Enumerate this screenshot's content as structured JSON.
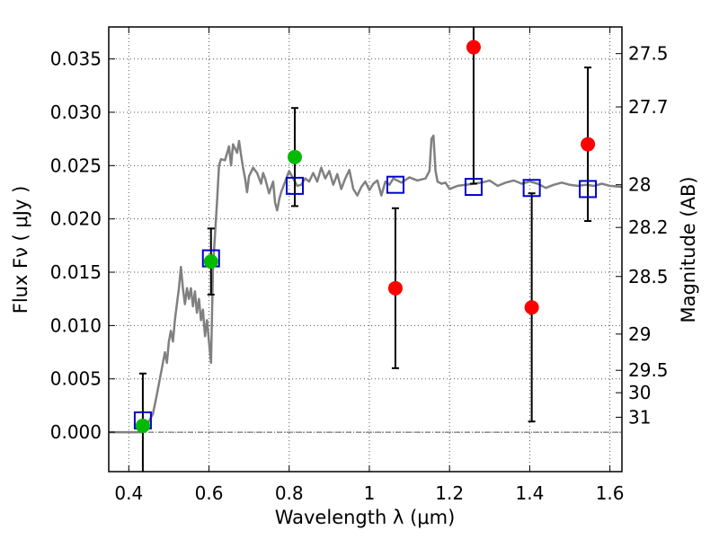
{
  "chart_data": {
    "type": "scatter",
    "title": "",
    "xlabel": "Wavelength  λ (μm)",
    "ylabel": "Flux  Fν  ( μJy )",
    "y2label": "Magnitude (AB)",
    "xlim": [
      0.35,
      1.63
    ],
    "ylim": [
      -0.0037,
      0.038
    ],
    "grid": true,
    "colors": {
      "spectrum": "#808080",
      "model": "#0000cc",
      "green": "#00bb00",
      "red": "#ff0000",
      "errorbar": "#000000",
      "grid": "#555555"
    },
    "x_ticks": [
      {
        "value": 0.4,
        "label": "0.4"
      },
      {
        "value": 0.6,
        "label": "0.6"
      },
      {
        "value": 0.8,
        "label": "0.8"
      },
      {
        "value": 1.0,
        "label": "1"
      },
      {
        "value": 1.2,
        "label": "1.2"
      },
      {
        "value": 1.4,
        "label": "1.4"
      },
      {
        "value": 1.6,
        "label": "1.6"
      }
    ],
    "y_ticks": [
      {
        "value": 0.0,
        "label": "0.000"
      },
      {
        "value": 0.005,
        "label": "0.005"
      },
      {
        "value": 0.01,
        "label": "0.010"
      },
      {
        "value": 0.015,
        "label": "0.015"
      },
      {
        "value": 0.02,
        "label": "0.020"
      },
      {
        "value": 0.025,
        "label": "0.025"
      },
      {
        "value": 0.03,
        "label": "0.030"
      },
      {
        "value": 0.035,
        "label": "0.035"
      }
    ],
    "magnitude_ticks": [
      {
        "flux": 0.0355,
        "label": "27.5"
      },
      {
        "flux": 0.0305,
        "label": "27.7"
      },
      {
        "flux": 0.0232,
        "label": "28"
      },
      {
        "flux": 0.0192,
        "label": "28.2"
      },
      {
        "flux": 0.0146,
        "label": "28.5"
      },
      {
        "flux": 0.0092,
        "label": "29"
      },
      {
        "flux": 0.0058,
        "label": "29.5"
      },
      {
        "flux": 0.0037,
        "label": "30"
      },
      {
        "flux": 0.0014,
        "label": "31"
      }
    ],
    "spectrum": [
      [
        0.35,
        0.0
      ],
      [
        0.43,
        0.0
      ],
      [
        0.44,
        0.0005
      ],
      [
        0.45,
        0.001
      ],
      [
        0.46,
        0.0017
      ],
      [
        0.47,
        0.0035
      ],
      [
        0.48,
        0.0055
      ],
      [
        0.49,
        0.0075
      ],
      [
        0.495,
        0.0065
      ],
      [
        0.5,
        0.0085
      ],
      [
        0.505,
        0.0095
      ],
      [
        0.51,
        0.0085
      ],
      [
        0.515,
        0.0105
      ],
      [
        0.52,
        0.012
      ],
      [
        0.525,
        0.0135
      ],
      [
        0.53,
        0.0155
      ],
      [
        0.535,
        0.0135
      ],
      [
        0.54,
        0.012
      ],
      [
        0.545,
        0.0135
      ],
      [
        0.55,
        0.0125
      ],
      [
        0.555,
        0.0135
      ],
      [
        0.56,
        0.0118
      ],
      [
        0.565,
        0.0132
      ],
      [
        0.57,
        0.0112
      ],
      [
        0.575,
        0.0125
      ],
      [
        0.58,
        0.0105
      ],
      [
        0.585,
        0.0115
      ],
      [
        0.59,
        0.009
      ],
      [
        0.595,
        0.0105
      ],
      [
        0.6,
        0.0085
      ],
      [
        0.605,
        0.0065
      ],
      [
        0.61,
        0.0155
      ],
      [
        0.62,
        0.0215
      ],
      [
        0.625,
        0.025
      ],
      [
        0.63,
        0.0256
      ],
      [
        0.64,
        0.0255
      ],
      [
        0.65,
        0.0268
      ],
      [
        0.655,
        0.025
      ],
      [
        0.66,
        0.027
      ],
      [
        0.67,
        0.0262
      ],
      [
        0.675,
        0.0273
      ],
      [
        0.68,
        0.026
      ],
      [
        0.685,
        0.0248
      ],
      [
        0.69,
        0.0238
      ],
      [
        0.695,
        0.0225
      ],
      [
        0.7,
        0.024
      ],
      [
        0.71,
        0.0248
      ],
      [
        0.72,
        0.0243
      ],
      [
        0.73,
        0.0233
      ],
      [
        0.735,
        0.0243
      ],
      [
        0.74,
        0.0238
      ],
      [
        0.75,
        0.0224
      ],
      [
        0.76,
        0.0235
      ],
      [
        0.765,
        0.0215
      ],
      [
        0.77,
        0.0208
      ],
      [
        0.775,
        0.0218
      ],
      [
        0.78,
        0.0225
      ],
      [
        0.79,
        0.0235
      ],
      [
        0.8,
        0.0245
      ],
      [
        0.81,
        0.0238
      ],
      [
        0.82,
        0.0231
      ],
      [
        0.83,
        0.0232
      ],
      [
        0.84,
        0.0238
      ],
      [
        0.85,
        0.0235
      ],
      [
        0.86,
        0.0243
      ],
      [
        0.87,
        0.0235
      ],
      [
        0.88,
        0.0248
      ],
      [
        0.89,
        0.0238
      ],
      [
        0.9,
        0.0245
      ],
      [
        0.91,
        0.0232
      ],
      [
        0.92,
        0.0242
      ],
      [
        0.93,
        0.0228
      ],
      [
        0.94,
        0.0238
      ],
      [
        0.95,
        0.0246
      ],
      [
        0.96,
        0.0228
      ],
      [
        0.97,
        0.0222
      ],
      [
        0.98,
        0.023
      ],
      [
        0.99,
        0.0235
      ],
      [
        1.0,
        0.0227
      ],
      [
        1.01,
        0.0233
      ],
      [
        1.02,
        0.0236
      ],
      [
        1.03,
        0.0222
      ],
      [
        1.04,
        0.0235
      ],
      [
        1.05,
        0.0232
      ],
      [
        1.06,
        0.0238
      ],
      [
        1.08,
        0.0234
      ],
      [
        1.1,
        0.0239
      ],
      [
        1.12,
        0.0236
      ],
      [
        1.14,
        0.0238
      ],
      [
        1.15,
        0.0245
      ],
      [
        1.155,
        0.0275
      ],
      [
        1.16,
        0.0278
      ],
      [
        1.165,
        0.0245
      ],
      [
        1.17,
        0.0235
      ],
      [
        1.18,
        0.0233
      ],
      [
        1.19,
        0.0234
      ],
      [
        1.2,
        0.0228
      ],
      [
        1.22,
        0.0231
      ],
      [
        1.24,
        0.0232
      ],
      [
        1.26,
        0.0233
      ],
      [
        1.28,
        0.0234
      ],
      [
        1.3,
        0.0236
      ],
      [
        1.32,
        0.0231
      ],
      [
        1.34,
        0.0234
      ],
      [
        1.36,
        0.0236
      ],
      [
        1.38,
        0.0233
      ],
      [
        1.4,
        0.0235
      ],
      [
        1.42,
        0.0233
      ],
      [
        1.44,
        0.0229
      ],
      [
        1.46,
        0.0232
      ],
      [
        1.48,
        0.0234
      ],
      [
        1.5,
        0.0232
      ],
      [
        1.52,
        0.0231
      ],
      [
        1.54,
        0.0232
      ],
      [
        1.56,
        0.0231
      ],
      [
        1.58,
        0.0233
      ],
      [
        1.6,
        0.0231
      ],
      [
        1.63,
        0.023
      ]
    ],
    "model_points": [
      {
        "x": 0.435,
        "y": 0.0011
      },
      {
        "x": 0.605,
        "y": 0.0163
      },
      {
        "x": 0.814,
        "y": 0.0231
      },
      {
        "x": 1.065,
        "y": 0.0232
      },
      {
        "x": 1.26,
        "y": 0.023
      },
      {
        "x": 1.405,
        "y": 0.0229
      },
      {
        "x": 1.545,
        "y": 0.0228
      }
    ],
    "observed_green": [
      {
        "x": 0.435,
        "y": 0.0006,
        "ylo": -0.004,
        "yhi": 0.0055
      },
      {
        "x": 0.605,
        "y": 0.016,
        "ylo": 0.0129,
        "yhi": 0.0191
      },
      {
        "x": 0.814,
        "y": 0.0258,
        "ylo": 0.0212,
        "yhi": 0.0304
      }
    ],
    "observed_red": [
      {
        "x": 1.065,
        "y": 0.0135,
        "ylo": 0.006,
        "yhi": 0.021
      },
      {
        "x": 1.26,
        "y": 0.0361,
        "ylo": 0.0233,
        "yhi": 0.039
      },
      {
        "x": 1.405,
        "y": 0.0117,
        "ylo": 0.001,
        "yhi": 0.0224
      },
      {
        "x": 1.545,
        "y": 0.027,
        "ylo": 0.0198,
        "yhi": 0.0342
      }
    ]
  }
}
